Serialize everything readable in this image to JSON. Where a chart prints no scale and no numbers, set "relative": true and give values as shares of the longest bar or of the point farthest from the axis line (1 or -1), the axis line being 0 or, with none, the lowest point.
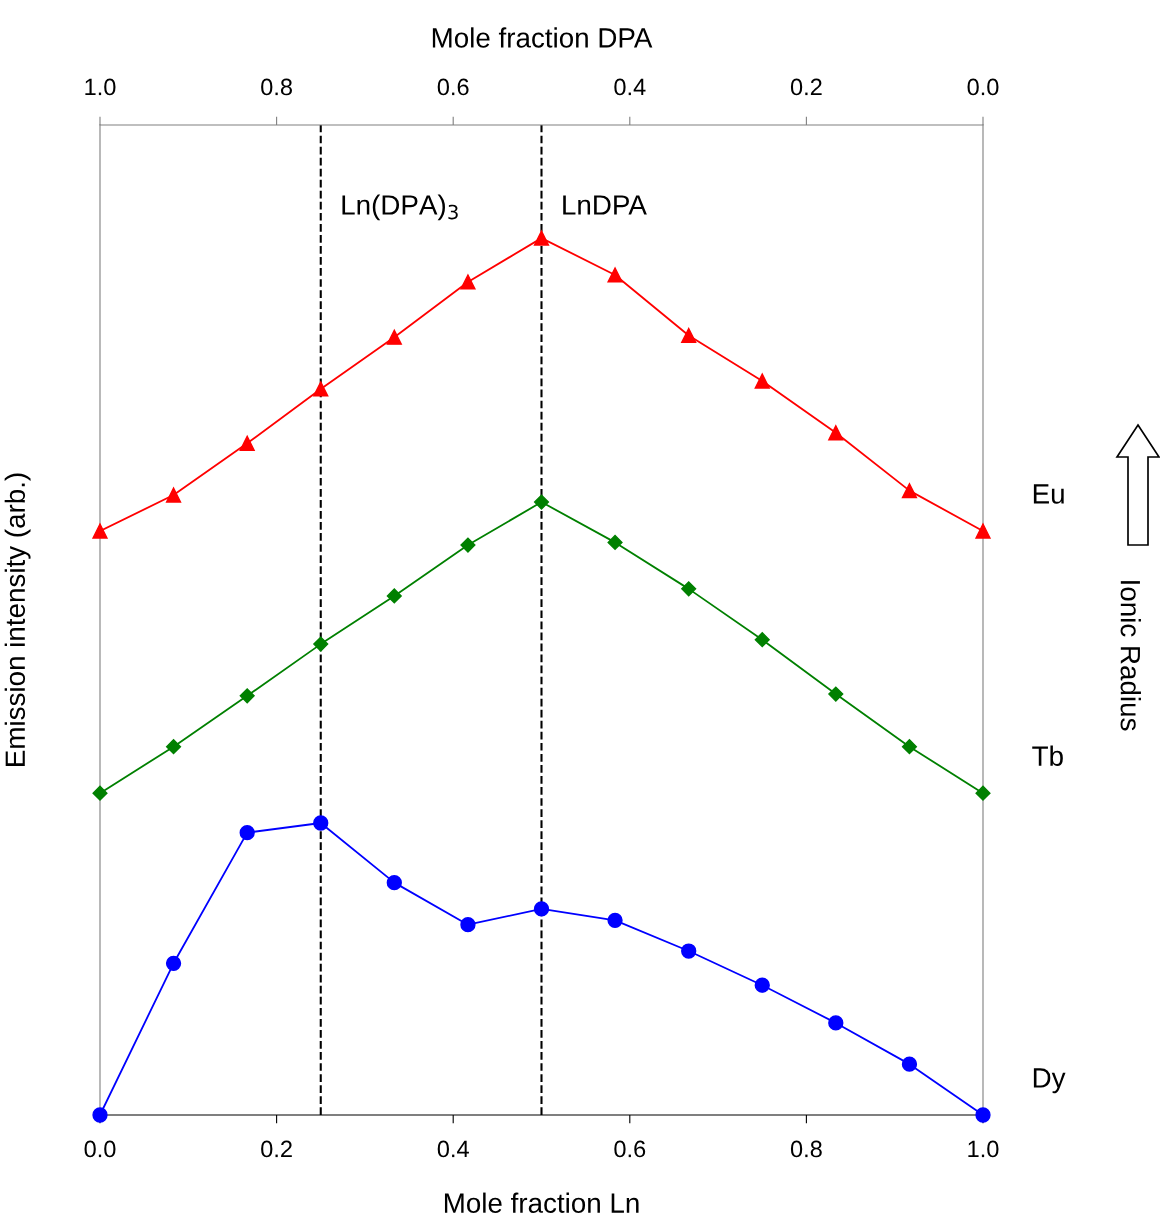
{
  "chart_data": {
    "type": "line",
    "xlabel": "Mole fraction Ln",
    "x2label": "Mole fraction DPA",
    "ylabel": "Emission intensity (arb.)",
    "relative": true,
    "grid": false,
    "line_style": "solid",
    "x": [
      0,
      0.0833,
      0.1667,
      0.25,
      0.3333,
      0.4167,
      0.5,
      0.5833,
      0.6667,
      0.75,
      0.8333,
      0.9167,
      1
    ],
    "xlim": [
      0,
      1
    ],
    "xticks": [
      {
        "value": 0,
        "label": "0.0"
      },
      0.2,
      0.4,
      0.6,
      0.8,
      {
        "value": 1,
        "label": "1.0"
      }
    ],
    "x2lim": [
      1,
      0
    ],
    "x2ticks": [
      {
        "value": 1,
        "label": "1.0"
      },
      0.8,
      0.6,
      0.4,
      0.2,
      {
        "value": 0,
        "label": "0.0"
      }
    ],
    "series": [
      {
        "name": "Eu",
        "color": "#ff0000",
        "marker": "triangle",
        "values": [
          0.666,
          0.707,
          0.766,
          0.828,
          0.887,
          0.95,
          1,
          0.958,
          0.889,
          0.837,
          0.778,
          0.712,
          0.666
        ]
      },
      {
        "name": "Tb",
        "color": "#008000",
        "marker": "diamond",
        "values": [
          0.367,
          0.42,
          0.478,
          0.537,
          0.592,
          0.65,
          0.699,
          0.653,
          0.6,
          0.542,
          0.48,
          0.42,
          0.367
        ]
      },
      {
        "name": "Dy",
        "color": "#0000ff",
        "marker": "circle",
        "values": [
          0,
          0.173,
          0.322,
          0.333,
          0.265,
          0.217,
          0.235,
          0.222,
          0.187,
          0.148,
          0.105,
          0.058,
          0
        ]
      }
    ],
    "ref_lines": [
      {
        "axis": "x",
        "value": 0.25,
        "label": "Ln(DPA)$_{3}$",
        "color": "#000000",
        "line_style": "dashed"
      },
      {
        "axis": "x",
        "value": 0.5,
        "label": "LnDPA",
        "color": "#000000",
        "line_style": "dashed"
      }
    ],
    "annotations": [
      "Ionic Radius"
    ]
  }
}
